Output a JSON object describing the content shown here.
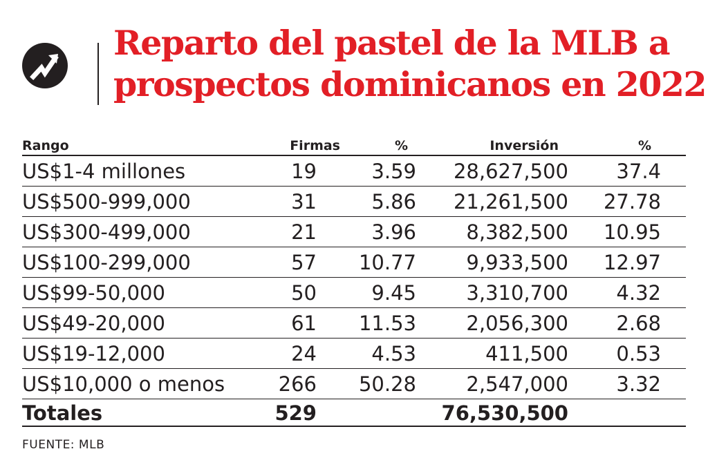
{
  "title_lines": [
    "Reparto del pastel de la MLB a",
    "prospectos dominicanos en 2022"
  ],
  "colors": {
    "title": "#e21f26",
    "text": "#231f20",
    "logo_bg": "#231f20",
    "logo_fg": "#ffffff"
  },
  "icons": {
    "logo": "trending-up-arrow-icon"
  },
  "chart_data": {
    "type": "table",
    "title": "Reparto del pastel de la MLB a prospectos dominicanos en 2022",
    "columns": [
      "Rango",
      "Firmas",
      "%",
      "Inversión",
      "%"
    ],
    "rows": [
      [
        "US$1-4 millones",
        "19",
        "3.59",
        "28,627,500",
        "37.4"
      ],
      [
        "US$500-999,000",
        "31",
        "5.86",
        "21,261,500",
        "27.78"
      ],
      [
        "US$300-499,000",
        "21",
        "3.96",
        "8,382,500",
        "10.95"
      ],
      [
        "US$100-299,000",
        "57",
        "10.77",
        "9,933,500",
        "12.97"
      ],
      [
        "US$99-50,000",
        "50",
        "9.45",
        "3,310,700",
        "4.32"
      ],
      [
        "US$49-20,000",
        "61",
        "11.53",
        "2,056,300",
        "2.68"
      ],
      [
        "US$19-12,000",
        "24",
        "4.53",
        "411,500",
        "0.53"
      ],
      [
        "US$10,000 o menos",
        "266",
        "50.28",
        "2,547,000",
        "3.32"
      ]
    ],
    "totals": [
      "Totales",
      "529",
      "",
      "76,530,500",
      ""
    ]
  },
  "source": "FUENTE: MLB"
}
